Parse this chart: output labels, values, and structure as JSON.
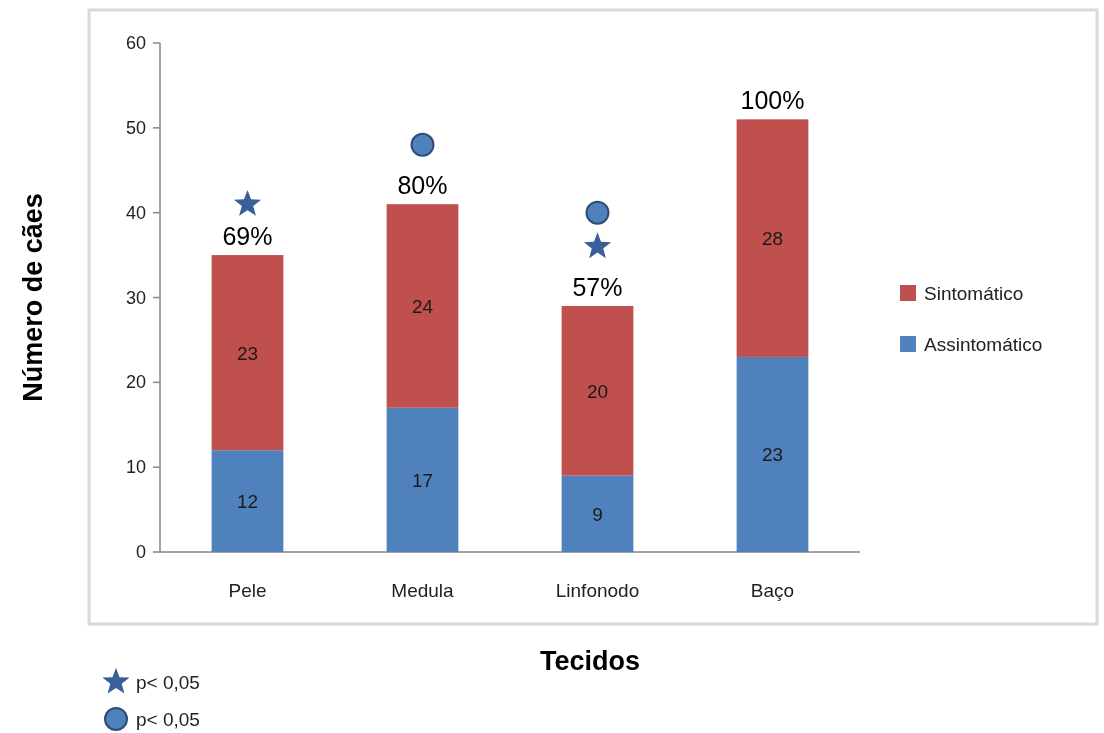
{
  "chart_data": {
    "type": "bar",
    "stacked": true,
    "xlabel": "Tecidos",
    "ylabel": "Número de cães",
    "categories": [
      "Pele",
      "Medula",
      "Linfonodo",
      "Baço"
    ],
    "series": [
      {
        "name": "Assintomático",
        "color": "#4f81bd",
        "values": [
          12,
          17,
          9,
          23
        ],
        "value_labels": [
          "12",
          "17",
          "9",
          "23"
        ]
      },
      {
        "name": "Sintomático",
        "color": "#c0504d",
        "values": [
          23,
          24,
          20,
          28
        ],
        "value_labels": [
          "23",
          "24",
          "20",
          "28"
        ]
      },
      {
        "name": "p< 0,05",
        "type": "scatter",
        "marker": "star",
        "color": "#3a5f9a",
        "x": [
          "Pele",
          "Linfonodo"
        ],
        "values": [
          41,
          36
        ]
      },
      {
        "name": "p< 0,05",
        "type": "scatter",
        "marker": "circle",
        "color": "#4f81bd",
        "x": [
          "Medula",
          "Linfonodo"
        ],
        "values": [
          48,
          40
        ]
      }
    ],
    "ylim": [
      0,
      60
    ],
    "yticks": [
      0,
      10,
      20,
      30,
      40,
      50,
      60
    ],
    "legend": "right",
    "grid": false,
    "annotations": [
      {
        "text": "69%",
        "x": "Pele",
        "y": 35
      },
      {
        "text": "80%",
        "x": "Medula",
        "y": 41
      },
      {
        "text": "57%",
        "x": "Linfonodo",
        "y": 29
      },
      {
        "text": "100%",
        "x": "Baço",
        "y": 51
      }
    ]
  }
}
